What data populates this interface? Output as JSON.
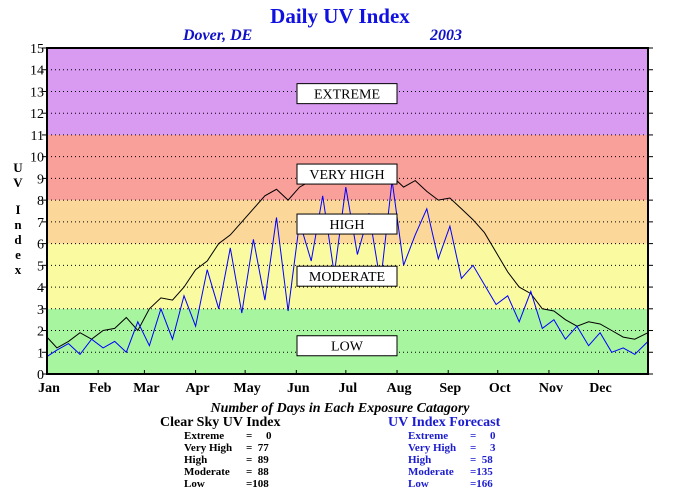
{
  "title": "Daily UV Index",
  "location": "Dover, DE",
  "year": "2003",
  "ylabel": "UV Index",
  "summary_title": "Number of Days in Each Exposure Catagory",
  "clear_sky": {
    "heading": "Clear Sky UV Index",
    "rows": [
      {
        "label": "Extreme",
        "value": "=     0"
      },
      {
        "label": "Very High",
        "value": "=  77"
      },
      {
        "label": "High",
        "value": "=  89"
      },
      {
        "label": "Moderate",
        "value": "=  88"
      },
      {
        "label": "Low",
        "value": "=108"
      }
    ]
  },
  "forecast": {
    "heading": "UV Index Forecast",
    "rows": [
      {
        "label": "Extreme",
        "value": "=     0"
      },
      {
        "label": "Very High",
        "value": "=     3"
      },
      {
        "label": "High",
        "value": "=  58"
      },
      {
        "label": "Moderate",
        "value": "=135"
      },
      {
        "label": "Low",
        "value": "=166"
      }
    ]
  },
  "colors": {
    "title": "#1010e0",
    "forecast_line": "#0000ff",
    "clear_line": "#000000",
    "low": "#a8f5a0",
    "moderate": "#fafaa0",
    "high": "#fbd79a",
    "very_high": "#f9a09a",
    "extreme": "#d99af2"
  },
  "chart_data": {
    "type": "line",
    "title": "Daily UV Index",
    "subtitle": "Dover, DE 2003",
    "ylabel": "UV Index",
    "xlabel": "",
    "ylim": [
      0,
      15
    ],
    "yticks": [
      0,
      1,
      2,
      3,
      4,
      5,
      6,
      7,
      8,
      9,
      10,
      11,
      12,
      13,
      14,
      15
    ],
    "xlim": [
      1,
      365
    ],
    "month_labels": [
      "Jan",
      "Feb",
      "Mar",
      "Apr",
      "May",
      "Jun",
      "Jul",
      "Aug",
      "Sep",
      "Oct",
      "Nov",
      "Dec"
    ],
    "month_start_days": [
      1,
      32,
      60,
      91,
      121,
      152,
      182,
      213,
      244,
      274,
      305,
      335
    ],
    "grid": true,
    "bands": [
      {
        "label": "LOW",
        "from": 0,
        "to": 3,
        "color": "#a8f5a0"
      },
      {
        "label": "MODERATE",
        "from": 3,
        "to": 6,
        "color": "#fafaa0"
      },
      {
        "label": "HIGH",
        "from": 6,
        "to": 8,
        "color": "#fbd79a"
      },
      {
        "label": "VERY HIGH",
        "from": 8,
        "to": 11,
        "color": "#f9a09a"
      },
      {
        "label": "EXTREME",
        "from": 11,
        "to": 15,
        "color": "#d99af2"
      }
    ],
    "band_label_values": [
      1.3,
      4.5,
      6.9,
      9.2,
      12.9
    ],
    "series": [
      {
        "color": "#000000",
        "x": [
          1,
          7,
          14,
          21,
          28,
          35,
          42,
          49,
          56,
          63,
          70,
          77,
          84,
          91,
          98,
          105,
          112,
          119,
          126,
          133,
          140,
          147,
          154,
          161,
          168,
          175,
          182,
          189,
          196,
          203,
          210,
          217,
          224,
          231,
          238,
          245,
          252,
          259,
          266,
          273,
          280,
          287,
          294,
          301,
          308,
          315,
          322,
          329,
          336,
          343,
          350,
          357,
          365
        ],
        "y": [
          1.7,
          1.2,
          1.5,
          1.9,
          1.6,
          2.0,
          2.1,
          2.6,
          2.0,
          3.0,
          3.5,
          3.4,
          4.0,
          4.8,
          5.2,
          6.0,
          6.4,
          7.0,
          7.6,
          8.2,
          8.5,
          8.0,
          8.6,
          8.9,
          9.0,
          9.2,
          9.1,
          9.4,
          8.8,
          9.0,
          9.1,
          8.6,
          8.9,
          8.4,
          8.0,
          8.1,
          7.6,
          7.1,
          6.5,
          5.6,
          4.7,
          4.0,
          3.7,
          3.0,
          2.9,
          2.5,
          2.2,
          2.4,
          2.3,
          2.0,
          1.7,
          1.6,
          1.9
        ]
      },
      {
        "color": "#0000ff",
        "x": [
          1,
          7,
          14,
          21,
          28,
          35,
          42,
          49,
          56,
          63,
          70,
          77,
          84,
          91,
          98,
          105,
          112,
          119,
          126,
          133,
          140,
          147,
          154,
          161,
          168,
          175,
          182,
          189,
          196,
          203,
          210,
          217,
          224,
          231,
          238,
          245,
          252,
          259,
          266,
          273,
          280,
          287,
          294,
          301,
          308,
          315,
          322,
          329,
          336,
          343,
          350,
          357,
          365
        ],
        "y": [
          0.8,
          1.1,
          1.4,
          0.9,
          1.6,
          1.2,
          1.5,
          1.0,
          2.4,
          1.3,
          3.0,
          1.6,
          3.6,
          2.2,
          4.8,
          3.0,
          5.8,
          2.8,
          6.2,
          3.4,
          7.2,
          2.9,
          7.0,
          5.2,
          8.2,
          4.6,
          8.6,
          5.5,
          7.4,
          4.2,
          8.9,
          5.0,
          6.4,
          7.6,
          5.3,
          6.8,
          4.4,
          5.0,
          4.1,
          3.2,
          3.6,
          2.4,
          3.8,
          2.1,
          2.5,
          1.6,
          2.2,
          1.3,
          1.9,
          1.0,
          1.2,
          0.9,
          1.5
        ]
      }
    ]
  }
}
